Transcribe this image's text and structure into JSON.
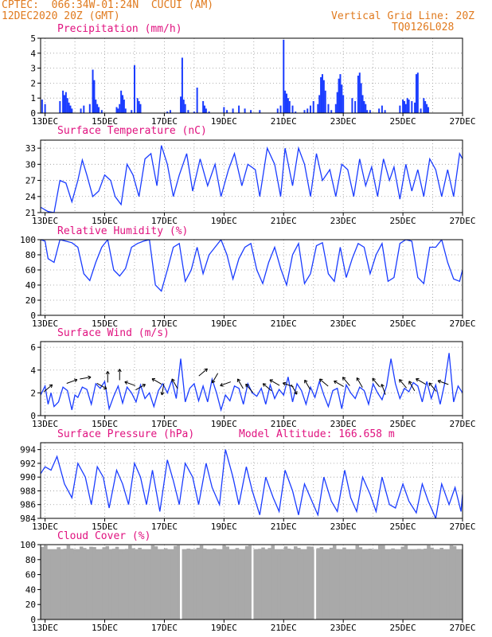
{
  "header": {
    "station": "CPTEC:  066:34W-01:24N  CUCUI (AM)",
    "datetime": "12DEC2020 20Z (GMT)",
    "grid_note": "Vertical Grid Line: 20Z",
    "code": "TQ0126L028"
  },
  "colors": {
    "header": "#e07a1e",
    "title": "#e0117f",
    "series": "#1a3cff",
    "cloud": "#a9a9a9"
  },
  "x_ticks": [
    "13DEC",
    "15DEC",
    "17DEC",
    "19DEC",
    "21DEC",
    "23DEC",
    "25DEC",
    "27DEC"
  ],
  "chart_data": [
    {
      "type": "bar",
      "title": "Precipitation (mm/h)",
      "ylim": [
        0,
        5
      ],
      "yticks": [
        0,
        1,
        2,
        3,
        4,
        5
      ],
      "x": [
        12.9,
        13.0,
        13.5,
        13.6,
        13.65,
        13.7,
        13.75,
        13.8,
        13.85,
        13.9,
        14.2,
        14.3,
        14.5,
        14.6,
        14.65,
        14.7,
        14.75,
        14.8,
        14.9,
        15.4,
        15.45,
        15.5,
        15.55,
        15.6,
        15.65,
        15.7,
        15.9,
        16.0,
        16.1,
        16.15,
        16.2,
        17.1,
        17.2,
        17.55,
        17.6,
        17.65,
        17.7,
        17.8,
        18.0,
        18.1,
        18.3,
        18.35,
        18.4,
        18.5,
        19.0,
        19.1,
        19.3,
        19.5,
        19.7,
        19.9,
        20.2,
        20.8,
        20.9,
        21.0,
        21.05,
        21.1,
        21.15,
        21.2,
        21.3,
        21.4,
        21.7,
        21.8,
        21.9,
        22.0,
        22.15,
        22.2,
        22.25,
        22.3,
        22.35,
        22.4,
        22.5,
        22.6,
        22.75,
        22.8,
        22.85,
        22.9,
        22.95,
        23.0,
        23.3,
        23.4,
        23.5,
        23.55,
        23.6,
        23.65,
        23.7,
        23.75,
        23.8,
        23.9,
        24.2,
        24.3,
        24.4,
        24.9,
        25.0,
        25.05,
        25.1,
        25.15,
        25.2,
        25.3,
        25.4,
        25.45,
        25.5,
        25.6,
        25.7,
        25.75,
        25.8,
        25.85
      ],
      "values": [
        0.9,
        0.6,
        0.8,
        1.5,
        1.2,
        1.4,
        1.0,
        0.7,
        0.5,
        0.3,
        0.3,
        0.5,
        0.6,
        2.9,
        2.2,
        0.9,
        0.6,
        0.4,
        0.2,
        0.4,
        0.3,
        0.6,
        1.5,
        1.2,
        0.9,
        0.3,
        0.2,
        3.2,
        1.0,
        0.8,
        0.6,
        0.1,
        0.2,
        1.1,
        3.7,
        0.9,
        0.6,
        0.2,
        0.1,
        1.7,
        0.8,
        0.5,
        0.3,
        0.1,
        0.4,
        0.2,
        0.3,
        0.5,
        0.3,
        0.2,
        0.2,
        0.3,
        0.5,
        4.9,
        1.5,
        1.3,
        1.0,
        0.8,
        0.5,
        0.1,
        0.2,
        0.3,
        0.5,
        0.8,
        0.6,
        1.2,
        2.4,
        2.6,
        2.2,
        1.5,
        0.6,
        0.2,
        0.6,
        1.4,
        2.3,
        2.6,
        1.9,
        1.2,
        1.0,
        0.8,
        2.5,
        2.7,
        2.0,
        1.2,
        0.8,
        0.6,
        0.2,
        0.2,
        0.3,
        0.5,
        0.2,
        0.5,
        0.9,
        0.8,
        0.6,
        1.0,
        0.9,
        0.8,
        0.7,
        2.6,
        2.7,
        0.3,
        1.0,
        0.8,
        0.6,
        0.4
      ]
    },
    {
      "type": "line",
      "title": "Surface Temperature (nC)",
      "ylim": [
        21,
        34.5
      ],
      "yticks": [
        21,
        24,
        27,
        30,
        33
      ],
      "x": [
        12.85,
        13.1,
        13.3,
        13.5,
        13.7,
        13.9,
        14.1,
        14.25,
        14.4,
        14.6,
        14.8,
        15.0,
        15.2,
        15.35,
        15.55,
        15.75,
        15.95,
        16.15,
        16.35,
        16.55,
        16.75,
        16.9,
        17.1,
        17.3,
        17.5,
        17.75,
        17.95,
        18.2,
        18.45,
        18.7,
        18.9,
        19.15,
        19.35,
        19.6,
        19.8,
        20.05,
        20.2,
        20.45,
        20.7,
        20.9,
        21.05,
        21.3,
        21.5,
        21.7,
        21.9,
        22.1,
        22.3,
        22.55,
        22.75,
        22.95,
        23.15,
        23.35,
        23.55,
        23.75,
        23.95,
        24.15,
        24.35,
        24.55,
        24.7,
        24.9,
        25.1,
        25.3,
        25.5,
        25.7,
        25.9,
        26.1,
        26.3,
        26.5,
        26.7,
        26.9,
        27.0
      ],
      "values": [
        22,
        21.2,
        21,
        27,
        26.5,
        23,
        27,
        30.8,
        28,
        24,
        25,
        28,
        27,
        24,
        22.5,
        30,
        28,
        24,
        31,
        32,
        26,
        33.5,
        30,
        24,
        28,
        32,
        25,
        31,
        26,
        30,
        24,
        29,
        32,
        26,
        30,
        29,
        24,
        33,
        30,
        24,
        33,
        26,
        33,
        30,
        24,
        32,
        27,
        29,
        24,
        30,
        29,
        24,
        31,
        26,
        29.5,
        24,
        31,
        27,
        29.5,
        23.5,
        30,
        25,
        29,
        24,
        31,
        29,
        24,
        29,
        24,
        32,
        31
      ]
    },
    {
      "type": "line",
      "title": "Relative Humidity (%)",
      "ylim": [
        0,
        100
      ],
      "yticks": [
        0,
        20,
        40,
        60,
        80,
        100
      ],
      "x": [
        12.85,
        13.0,
        13.1,
        13.3,
        13.5,
        13.7,
        13.9,
        14.1,
        14.3,
        14.5,
        14.7,
        14.9,
        15.1,
        15.3,
        15.5,
        15.7,
        15.9,
        16.1,
        16.3,
        16.5,
        16.7,
        16.9,
        17.1,
        17.3,
        17.5,
        17.7,
        17.9,
        18.1,
        18.3,
        18.5,
        18.7,
        18.9,
        19.1,
        19.3,
        19.5,
        19.7,
        19.9,
        20.1,
        20.3,
        20.5,
        20.7,
        20.9,
        21.1,
        21.3,
        21.5,
        21.7,
        21.9,
        22.1,
        22.3,
        22.5,
        22.7,
        22.9,
        23.1,
        23.3,
        23.5,
        23.7,
        23.9,
        24.1,
        24.3,
        24.5,
        24.7,
        24.9,
        25.1,
        25.3,
        25.5,
        25.7,
        25.9,
        26.1,
        26.3,
        26.5,
        26.7,
        26.9,
        27.0
      ],
      "values": [
        100,
        98,
        75,
        70,
        100,
        98,
        96,
        90,
        55,
        46,
        70,
        90,
        100,
        60,
        52,
        62,
        90,
        95,
        98,
        100,
        40,
        32,
        60,
        90,
        95,
        45,
        60,
        90,
        55,
        80,
        90,
        100,
        80,
        48,
        75,
        90,
        95,
        60,
        42,
        70,
        90,
        62,
        40,
        80,
        95,
        42,
        55,
        92,
        96,
        55,
        45,
        90,
        50,
        75,
        95,
        90,
        55,
        80,
        95,
        45,
        50,
        95,
        100,
        98,
        50,
        42,
        90,
        90,
        100,
        70,
        48,
        45,
        60
      ]
    },
    {
      "type": "line",
      "title": "Surface Wind (m/s)",
      "ylim": [
        0,
        6.5
      ],
      "yticks": [
        0,
        2,
        4,
        6
      ],
      "x": [
        12.85,
        13.0,
        13.1,
        13.2,
        13.3,
        13.45,
        13.6,
        13.75,
        13.9,
        14.0,
        14.1,
        14.25,
        14.4,
        14.55,
        14.7,
        14.85,
        15.0,
        15.15,
        15.3,
        15.45,
        15.6,
        15.75,
        15.9,
        16.05,
        16.2,
        16.35,
        16.5,
        16.65,
        16.8,
        16.95,
        17.1,
        17.25,
        17.4,
        17.55,
        17.7,
        17.85,
        18.0,
        18.15,
        18.3,
        18.45,
        18.6,
        18.75,
        18.9,
        19.05,
        19.2,
        19.35,
        19.5,
        19.65,
        19.8,
        19.95,
        20.1,
        20.25,
        20.4,
        20.55,
        20.7,
        20.85,
        21.0,
        21.15,
        21.3,
        21.45,
        21.6,
        21.75,
        21.9,
        22.05,
        22.2,
        22.35,
        22.5,
        22.65,
        22.8,
        22.95,
        23.1,
        23.25,
        23.4,
        23.55,
        23.7,
        23.85,
        24.0,
        24.15,
        24.3,
        24.45,
        24.6,
        24.75,
        24.9,
        25.05,
        25.2,
        25.35,
        25.5,
        25.65,
        25.8,
        25.95,
        26.1,
        26.25,
        26.4,
        26.55,
        26.7,
        26.85,
        27.0
      ],
      "values": [
        1.8,
        2.6,
        1.0,
        2.0,
        0.8,
        1.2,
        2.5,
        2.2,
        0.5,
        1.8,
        1.6,
        2.5,
        2.3,
        1.0,
        2.8,
        2.4,
        3.0,
        0.6,
        1.7,
        2.6,
        1.1,
        2.5,
        2.0,
        1.2,
        2.7,
        1.5,
        2.0,
        0.8,
        2.2,
        2.8,
        2.0,
        3.1,
        1.5,
        5.0,
        1.2,
        2.4,
        2.8,
        1.3,
        2.6,
        1.2,
        3.2,
        2.0,
        0.5,
        1.8,
        1.3,
        2.6,
        2.4,
        1.0,
        2.8,
        2.0,
        1.7,
        2.4,
        1.0,
        2.7,
        1.5,
        2.3,
        1.8,
        3.4,
        1.2,
        2.8,
        2.2,
        1.0,
        2.5,
        1.6,
        3.0,
        1.8,
        0.8,
        2.2,
        2.4,
        0.6,
        2.7,
        2.0,
        1.5,
        2.5,
        2.2,
        1.0,
        2.8,
        2.0,
        1.4,
        2.6,
        5.0,
        2.8,
        1.5,
        2.4,
        2.1,
        2.9,
        2.6,
        1.2,
        3.0,
        1.5,
        2.7,
        1.0,
        2.8,
        5.5,
        1.2,
        2.6,
        2.0
      ]
    },
    {
      "type": "line",
      "title": "Surface Pressure (hPa)",
      "subtitle": "Model Altitude: 166.658 m",
      "ylim": [
        984,
        995
      ],
      "yticks": [
        984,
        986,
        988,
        990,
        992,
        994
      ],
      "x": [
        12.85,
        13.0,
        13.2,
        13.4,
        13.65,
        13.9,
        14.1,
        14.35,
        14.55,
        14.75,
        14.95,
        15.15,
        15.4,
        15.6,
        15.8,
        16.0,
        16.2,
        16.4,
        16.6,
        16.85,
        17.1,
        17.3,
        17.5,
        17.7,
        17.95,
        18.15,
        18.4,
        18.6,
        18.85,
        19.05,
        19.3,
        19.5,
        19.75,
        19.95,
        20.2,
        20.4,
        20.65,
        20.85,
        21.05,
        21.3,
        21.5,
        21.7,
        21.95,
        22.15,
        22.35,
        22.6,
        22.8,
        23.05,
        23.25,
        23.45,
        23.65,
        23.9,
        24.1,
        24.3,
        24.55,
        24.75,
        25.0,
        25.2,
        25.45,
        25.65,
        25.85,
        26.1,
        26.3,
        26.55,
        26.75,
        26.95,
        27.0
      ],
      "values": [
        990.5,
        991.5,
        991,
        993,
        989,
        987,
        992,
        990,
        986,
        991.5,
        990,
        985.5,
        991,
        989,
        986,
        992,
        990,
        986,
        991,
        985,
        992.5,
        989.5,
        986,
        992,
        990,
        986,
        992,
        988.5,
        986,
        994,
        990,
        986,
        991.5,
        988,
        984.5,
        990,
        987,
        985,
        991,
        988,
        984.5,
        989,
        986.5,
        984.5,
        990,
        986.5,
        985,
        991,
        987,
        985,
        990,
        987.5,
        985,
        990,
        986,
        985.5,
        989,
        986.5,
        984.8,
        989,
        986.5,
        984,
        989,
        986,
        988.5,
        985,
        987.5
      ]
    },
    {
      "type": "bar",
      "title": "Cloud Cover (%)",
      "ylim": [
        0,
        100
      ],
      "yticks": [
        0,
        20,
        40,
        60,
        80,
        100
      ],
      "gaps_x": [
        17.55,
        19.95,
        22.05
      ],
      "level": 94
    }
  ]
}
